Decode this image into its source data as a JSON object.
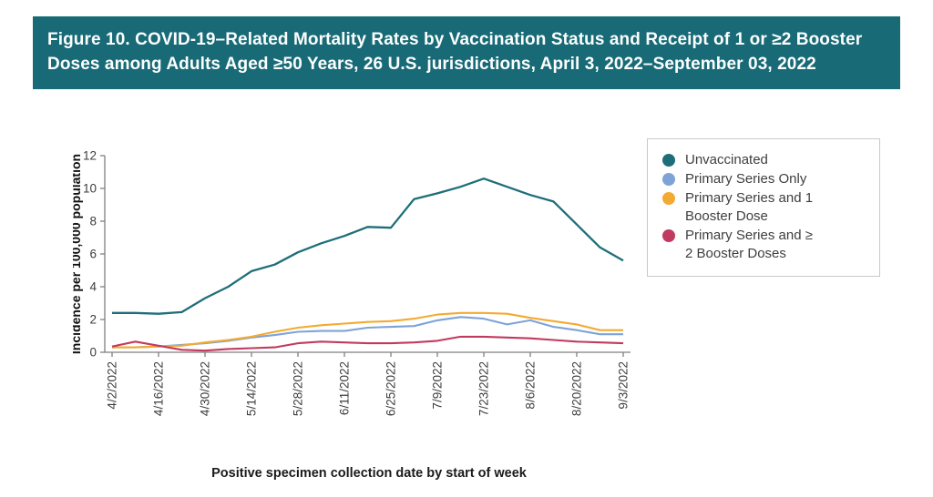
{
  "header": {
    "title": "Figure 10. COVID-19–Related Mortality Rates by Vaccination Status and Receipt of 1 or ≥2 Booster Doses among Adults Aged ≥50 Years, 26 U.S. jurisdictions, April 3, 2022–September 03, 2022"
  },
  "legend": {
    "items": [
      {
        "label": "Unvaccinated"
      },
      {
        "label": "Primary Series Only"
      },
      {
        "label": "Primary Series and 1\nBooster Dose"
      },
      {
        "label": "Primary Series and ≥\n2 Booster Doses"
      }
    ]
  },
  "colors": {
    "banner_background": "#176A76",
    "banner_text": "#FDFEFE",
    "axis": "#7F7F7F",
    "tick_text": "#3D3D3D",
    "legend_border": "#C9C9C9",
    "legend_text": "#3F3F3F"
  },
  "chart_data": {
    "type": "line",
    "title": "Figure 10. COVID-19–Related Mortality Rates by Vaccination Status and Receipt of 1 or ≥2 Booster Doses among Adults Aged ≥50 Years, 26 U.S. jurisdictions, April 3, 2022–September 03, 2022",
    "xlabel": "Positive specimen collection date by start of week",
    "ylabel": "Incidence per 100,000 population",
    "ylim": [
      0,
      12
    ],
    "yticks": [
      0,
      2,
      4,
      6,
      8,
      10,
      12
    ],
    "grid": false,
    "legend_position": "right",
    "x": [
      "4/2/2022",
      "4/9/2022",
      "4/16/2022",
      "4/23/2022",
      "4/30/2022",
      "5/7/2022",
      "5/14/2022",
      "5/21/2022",
      "5/28/2022",
      "6/4/2022",
      "6/11/2022",
      "6/18/2022",
      "6/25/2022",
      "7/2/2022",
      "7/9/2022",
      "7/16/2022",
      "7/23/2022",
      "7/30/2022",
      "8/6/2022",
      "8/13/2022",
      "8/20/2022",
      "8/27/2022",
      "9/3/2022"
    ],
    "x_tick_label_indices": [
      0,
      2,
      4,
      6,
      8,
      10,
      12,
      14,
      16,
      18,
      20,
      22
    ],
    "series": [
      {
        "name": "Unvaccinated",
        "color": "#1E6E79",
        "values": [
          2.4,
          2.4,
          2.35,
          2.45,
          3.3,
          4.0,
          4.95,
          5.35,
          6.1,
          6.65,
          7.1,
          7.65,
          7.6,
          9.35,
          9.7,
          10.1,
          10.6,
          10.1,
          9.6,
          9.2,
          7.8,
          6.4,
          5.6
        ]
      },
      {
        "name": "Primary Series Only",
        "color": "#7EA3D7",
        "values": [
          0.3,
          0.3,
          0.35,
          0.45,
          0.55,
          0.7,
          0.9,
          1.05,
          1.25,
          1.3,
          1.3,
          1.5,
          1.55,
          1.6,
          1.95,
          2.15,
          2.05,
          1.7,
          1.95,
          1.55,
          1.35,
          1.1,
          1.1
        ]
      },
      {
        "name": "Primary Series and 1 Booster Dose",
        "color": "#F3AA33",
        "values": [
          0.3,
          0.3,
          0.35,
          0.4,
          0.6,
          0.75,
          0.95,
          1.25,
          1.5,
          1.65,
          1.75,
          1.85,
          1.9,
          2.05,
          2.3,
          2.4,
          2.4,
          2.35,
          2.1,
          1.9,
          1.7,
          1.35,
          1.35
        ]
      },
      {
        "name": "Primary Series and ≥ 2 Booster Doses",
        "color": "#C13A5F",
        "values": [
          0.35,
          0.65,
          0.4,
          0.15,
          0.1,
          0.2,
          0.25,
          0.3,
          0.55,
          0.65,
          0.6,
          0.55,
          0.55,
          0.6,
          0.7,
          0.95,
          0.95,
          0.9,
          0.85,
          0.75,
          0.65,
          0.6,
          0.55
        ]
      }
    ]
  }
}
